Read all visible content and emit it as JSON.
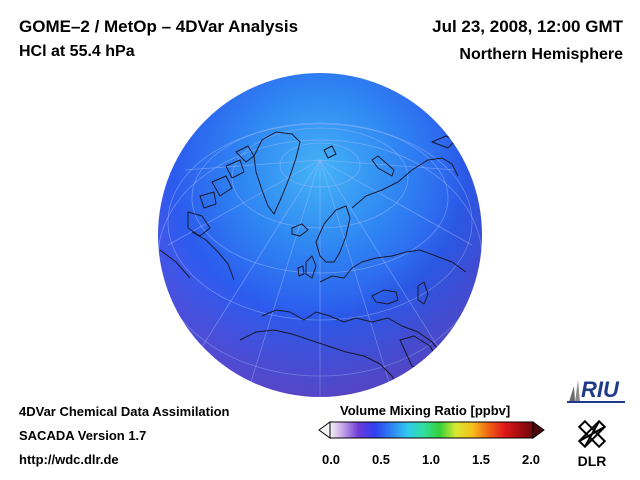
{
  "header": {
    "title": "GOME–2 / MetOp – 4DVar Analysis",
    "subtitle": "HCl at 55.4 hPa",
    "datetime": "Jul 23, 2008, 12:00 GMT",
    "region": "Northern Hemisphere"
  },
  "footer": {
    "line1": "4DVar Chemical Data Assimilation",
    "line2": "SACADA Version 1.7",
    "line3": "http://wdc.dlr.de"
  },
  "colorbar": {
    "title": "Volume Mixing Ratio [ppbv]",
    "ticks": [
      "0.0",
      "0.5",
      "1.0",
      "1.5",
      "2.0"
    ],
    "min": 0.0,
    "max": 2.0
  },
  "logos": {
    "riu": "RIU",
    "dlr": "DLR"
  },
  "colors": {
    "globe_center": "#3aa2f4",
    "globe_mid": "#2a6cf0",
    "globe_edge": "#5b4fe8",
    "coastline": "#1a1a2e",
    "grid": "#9fb8ff"
  }
}
